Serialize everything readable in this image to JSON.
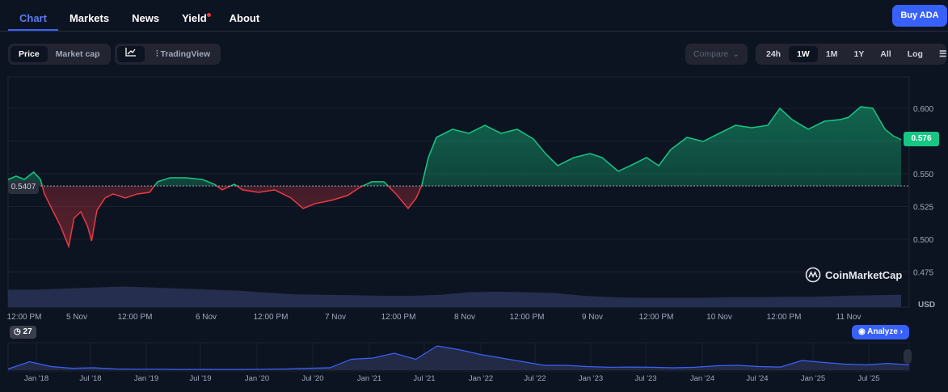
{
  "nav": {
    "tabs": [
      {
        "label": "Chart",
        "active": true
      },
      {
        "label": "Markets"
      },
      {
        "label": "News"
      },
      {
        "label": "Yield",
        "notification_dot": true
      },
      {
        "label": "About"
      }
    ],
    "buy_label": "Buy ADA"
  },
  "toolbar": {
    "price_label": "Price",
    "market_cap_label": "Market cap",
    "line_chart_icon": "line-chart-icon",
    "tradingview_label": "TradingView",
    "compare_label": "Compare",
    "ranges": [
      "24h",
      "1W",
      "1M",
      "1Y",
      "All"
    ],
    "active_range": "1W",
    "log_label": "Log",
    "settings_icon": "sliders-icon"
  },
  "chart_data": {
    "type": "area",
    "colors": {
      "up": "#16c784",
      "down": "#ea3943"
    },
    "baseline": 0.5407,
    "baseline_label": "0.5407",
    "current": 0.576,
    "current_label": "0.576",
    "ylim": [
      0.46,
      0.625
    ],
    "y_ticks": [
      "0.600",
      "0.550",
      "0.525",
      "0.500",
      "0.475"
    ],
    "y_unit": "USD",
    "x_ticks": [
      "12:00 PM",
      "5 Nov",
      "12:00 PM",
      "6 Nov",
      "12:00 PM",
      "7 Nov",
      "12:00 PM",
      "8 Nov",
      "12:00 PM",
      "9 Nov",
      "12:00 PM",
      "10 Nov",
      "12:00 PM",
      "11 Nov"
    ],
    "series": [
      {
        "t": "Nov 4 11:15",
        "v": 0.5457
      },
      {
        "t": "Nov 4 12:45",
        "v": 0.5482
      },
      {
        "t": "Nov 4 14:15",
        "v": 0.5457
      },
      {
        "t": "Nov 4 16:00",
        "v": 0.5513
      },
      {
        "t": "Nov 4 17:15",
        "v": 0.5457
      },
      {
        "t": "Nov 4 18:00",
        "v": 0.5346
      },
      {
        "t": "Nov 4 19:30",
        "v": 0.5222
      },
      {
        "t": "Nov 4 21:00",
        "v": 0.5099
      },
      {
        "t": "Nov 4 22:30",
        "v": 0.4945
      },
      {
        "t": "Nov 4 23:30",
        "v": 0.5161
      },
      {
        "t": "Nov 5 00:45",
        "v": 0.521
      },
      {
        "t": "Nov 5 02:00",
        "v": 0.5099
      },
      {
        "t": "Nov 5 02:45",
        "v": 0.4988
      },
      {
        "t": "Nov 5 03:45",
        "v": 0.5222
      },
      {
        "t": "Nov 5 05:15",
        "v": 0.5315
      },
      {
        "t": "Nov 5 06:45",
        "v": 0.5346
      },
      {
        "t": "Nov 5 09:00",
        "v": 0.5315
      },
      {
        "t": "Nov 5 11:15",
        "v": 0.5346
      },
      {
        "t": "Nov 5 13:30",
        "v": 0.5358
      },
      {
        "t": "Nov 5 15:00",
        "v": 0.5439
      },
      {
        "t": "Nov 5 17:15",
        "v": 0.5469
      },
      {
        "t": "Nov 5 20:15",
        "v": 0.5469
      },
      {
        "t": "Nov 5 23:15",
        "v": 0.5457
      },
      {
        "t": "Nov 6 01:30",
        "v": 0.542
      },
      {
        "t": "Nov 6 03:00",
        "v": 0.5377
      },
      {
        "t": "Nov 6 05:15",
        "v": 0.542
      },
      {
        "t": "Nov 6 06:45",
        "v": 0.5377
      },
      {
        "t": "Nov 6 09:45",
        "v": 0.5358
      },
      {
        "t": "Nov 6 12:45",
        "v": 0.5377
      },
      {
        "t": "Nov 6 15:45",
        "v": 0.5315
      },
      {
        "t": "Nov 6 18:00",
        "v": 0.5235
      },
      {
        "t": "Nov 6 20:15",
        "v": 0.5272
      },
      {
        "t": "Nov 6 23:15",
        "v": 0.5297
      },
      {
        "t": "Nov 7 02:15",
        "v": 0.5334
      },
      {
        "t": "Nov 7 04:30",
        "v": 0.5395
      },
      {
        "t": "Nov 7 06:45",
        "v": 0.5439
      },
      {
        "t": "Nov 7 09:00",
        "v": 0.5439
      },
      {
        "t": "Nov 7 11:15",
        "v": 0.5346
      },
      {
        "t": "Nov 7 13:30",
        "v": 0.5235
      },
      {
        "t": "Nov 7 15:00",
        "v": 0.5315
      },
      {
        "t": "Nov 7 16:00",
        "v": 0.5408
      },
      {
        "t": "Nov 7 17:15",
        "v": 0.5624
      },
      {
        "t": "Nov 7 18:45",
        "v": 0.5778
      },
      {
        "t": "Nov 7 21:45",
        "v": 0.584
      },
      {
        "t": "Nov 8 00:45",
        "v": 0.5809
      },
      {
        "t": "Nov 8 03:45",
        "v": 0.587
      },
      {
        "t": "Nov 8 06:45",
        "v": 0.5809
      },
      {
        "t": "Nov 8 09:45",
        "v": 0.584
      },
      {
        "t": "Nov 8 12:45",
        "v": 0.5766
      },
      {
        "t": "Nov 8 15:00",
        "v": 0.5654
      },
      {
        "t": "Nov 8 17:15",
        "v": 0.5562
      },
      {
        "t": "Nov 8 20:15",
        "v": 0.5624
      },
      {
        "t": "Nov 8 23:15",
        "v": 0.5654
      },
      {
        "t": "Nov 9 01:30",
        "v": 0.5624
      },
      {
        "t": "Nov 9 04:30",
        "v": 0.5519
      },
      {
        "t": "Nov 9 06:45",
        "v": 0.5562
      },
      {
        "t": "Nov 9 09:45",
        "v": 0.5624
      },
      {
        "t": "Nov 9 12:00",
        "v": 0.5562
      },
      {
        "t": "Nov 9 14:15",
        "v": 0.5685
      },
      {
        "t": "Nov 9 17:15",
        "v": 0.5778
      },
      {
        "t": "Nov 9 20:15",
        "v": 0.5747
      },
      {
        "t": "Nov 9 23:15",
        "v": 0.5809
      },
      {
        "t": "Nov 10 02:15",
        "v": 0.587
      },
      {
        "t": "Nov 10 05:15",
        "v": 0.5852
      },
      {
        "t": "Nov 10 08:15",
        "v": 0.587
      },
      {
        "t": "Nov 10 10:30",
        "v": 0.6
      },
      {
        "t": "Nov 10 12:45",
        "v": 0.5914
      },
      {
        "t": "Nov 10 15:45",
        "v": 0.584
      },
      {
        "t": "Nov 10 18:45",
        "v": 0.5901
      },
      {
        "t": "Nov 10 21:45",
        "v": 0.5914
      },
      {
        "t": "Nov 10 23:15",
        "v": 0.5932
      },
      {
        "t": "Nov 11 01:30",
        "v": 0.6012
      },
      {
        "t": "Nov 11 03:45",
        "v": 0.6
      },
      {
        "t": "Nov 11 06:00",
        "v": 0.584
      },
      {
        "t": "Nov 11 07:30",
        "v": 0.579
      },
      {
        "t": "Nov 11 09:00",
        "v": 0.576
      }
    ],
    "volume_relative": [
      0.85,
      0.85,
      0.9,
      0.95,
      1.0,
      0.95,
      0.9,
      0.85,
      0.8,
      0.7,
      0.62,
      0.6,
      0.58,
      0.55,
      0.55,
      0.6,
      0.72,
      0.75,
      0.72,
      0.68,
      0.55,
      0.48,
      0.45,
      0.45,
      0.45,
      0.48,
      0.48,
      0.5,
      0.5,
      0.55,
      0.58,
      0.6
    ],
    "watermark": "CoinMarketCap"
  },
  "history_badge": {
    "icon": "history-icon",
    "count": "27"
  },
  "analyze_label": "Analyze",
  "navigator": {
    "x_ticks": [
      "Jan '18",
      "Jul '18",
      "Jan '19",
      "Jul '19",
      "Jan '20",
      "Jul '20",
      "Jan '21",
      "Jul '21",
      "Jan '22",
      "Jul '22",
      "Jan '23",
      "Jul '23",
      "Jan '24",
      "Jul '24",
      "Jan '25",
      "Jul '25"
    ],
    "relative_price": [
      0.05,
      0.35,
      0.15,
      0.08,
      0.1,
      0.05,
      0.04,
      0.04,
      0.03,
      0.03,
      0.03,
      0.03,
      0.04,
      0.05,
      0.08,
      0.1,
      0.45,
      0.5,
      0.7,
      0.45,
      1.0,
      0.85,
      0.65,
      0.5,
      0.35,
      0.2,
      0.2,
      0.15,
      0.12,
      0.13,
      0.12,
      0.1,
      0.12,
      0.18,
      0.2,
      0.15,
      0.13,
      0.4,
      0.32,
      0.25,
      0.22,
      0.28,
      0.22
    ]
  }
}
